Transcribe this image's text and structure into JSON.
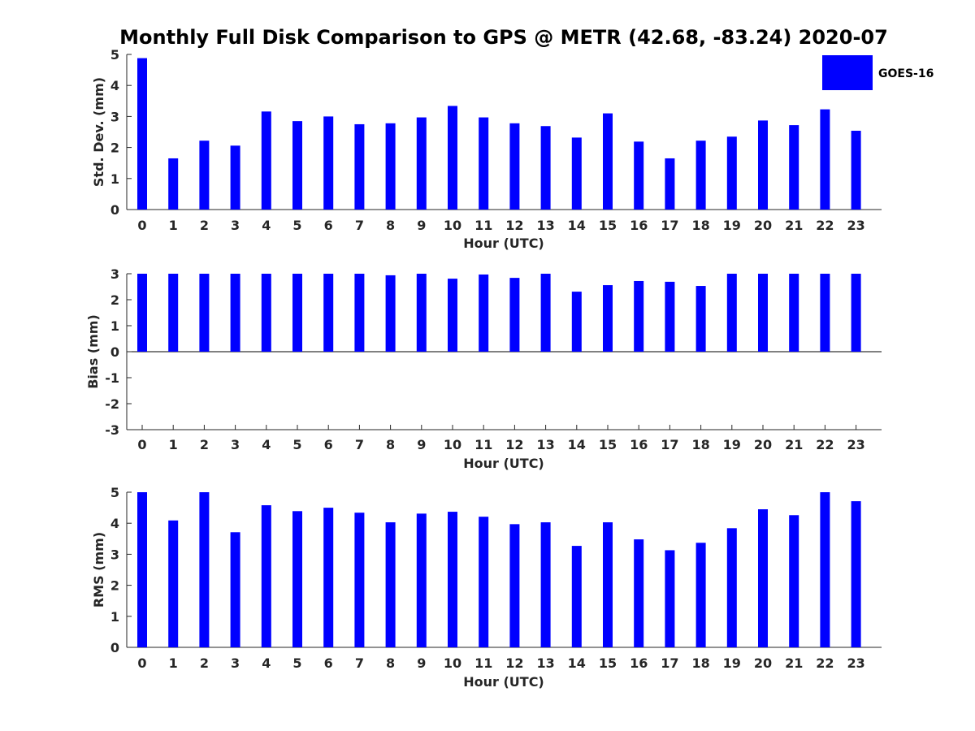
{
  "title": "Monthly Full Disk Comparison to GPS @ METR (42.68, -83.24) 2020-07",
  "legend": {
    "label": "GOES-16",
    "color": "#0000ff"
  },
  "colors": {
    "bar": "#0000ff",
    "axis": "#262626"
  },
  "chart_data": [
    {
      "type": "bar",
      "xlabel": "Hour (UTC)",
      "ylabel": "Std. Dev. (mm)",
      "ylim": [
        0,
        5
      ],
      "yticks": [
        0,
        1,
        2,
        3,
        4,
        5
      ],
      "categories": [
        "0",
        "1",
        "2",
        "3",
        "4",
        "5",
        "6",
        "7",
        "8",
        "9",
        "10",
        "11",
        "12",
        "13",
        "14",
        "15",
        "16",
        "17",
        "18",
        "19",
        "20",
        "21",
        "22",
        "23"
      ],
      "series": [
        {
          "name": "GOES-16",
          "values": [
            4.88,
            1.65,
            2.22,
            2.06,
            3.16,
            2.85,
            3.0,
            2.75,
            2.78,
            2.97,
            3.34,
            2.97,
            2.78,
            2.69,
            2.32,
            3.1,
            2.19,
            1.65,
            2.22,
            2.35,
            2.87,
            2.72,
            3.23,
            2.54
          ]
        }
      ]
    },
    {
      "type": "bar",
      "xlabel": "Hour (UTC)",
      "ylabel": "Bias (mm)",
      "ylim": [
        -3,
        3
      ],
      "yticks": [
        -3,
        -2,
        -1,
        0,
        1,
        2,
        3
      ],
      "categories": [
        "0",
        "1",
        "2",
        "3",
        "4",
        "5",
        "6",
        "7",
        "8",
        "9",
        "10",
        "11",
        "12",
        "13",
        "14",
        "15",
        "16",
        "17",
        "18",
        "19",
        "20",
        "21",
        "22",
        "23"
      ],
      "series": [
        {
          "name": "GOES-16",
          "values": [
            3.0,
            3.0,
            3.0,
            3.0,
            3.0,
            3.0,
            3.0,
            3.0,
            2.94,
            3.0,
            2.81,
            2.97,
            2.84,
            3.0,
            2.31,
            2.56,
            2.72,
            2.69,
            2.53,
            3.0,
            3.0,
            3.0,
            3.0,
            3.0
          ]
        }
      ]
    },
    {
      "type": "bar",
      "xlabel": "Hour (UTC)",
      "ylabel": "RMS (mm)",
      "ylim": [
        0,
        5
      ],
      "yticks": [
        0,
        1,
        2,
        3,
        4,
        5
      ],
      "categories": [
        "0",
        "1",
        "2",
        "3",
        "4",
        "5",
        "6",
        "7",
        "8",
        "9",
        "10",
        "11",
        "12",
        "13",
        "14",
        "15",
        "16",
        "17",
        "18",
        "19",
        "20",
        "21",
        "22",
        "23"
      ],
      "series": [
        {
          "name": "GOES-16",
          "values": [
            5.0,
            4.09,
            5.0,
            3.71,
            4.58,
            4.39,
            4.5,
            4.34,
            4.03,
            4.31,
            4.37,
            4.21,
            3.97,
            4.03,
            3.27,
            4.03,
            3.48,
            3.13,
            3.37,
            3.84,
            4.45,
            4.26,
            5.0,
            4.71
          ]
        }
      ]
    }
  ]
}
